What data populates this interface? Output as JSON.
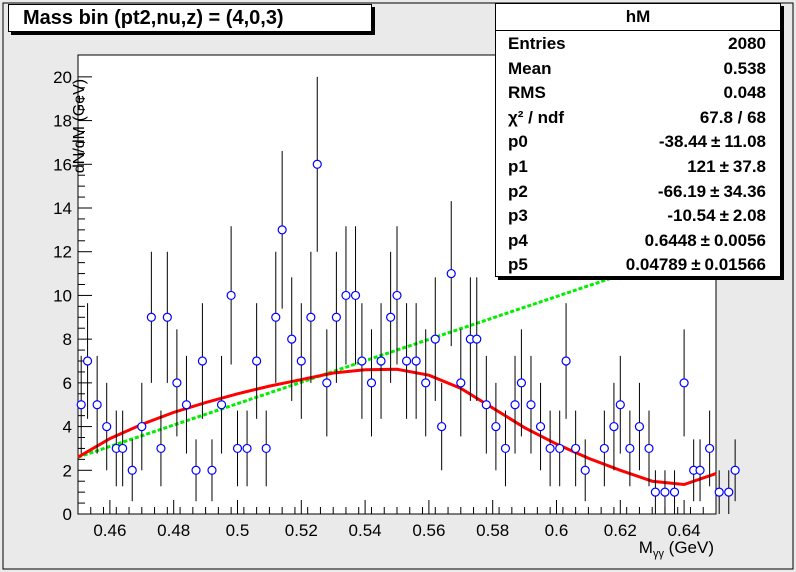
{
  "title": "Mass bin (pt2,nu,z) = (4,0,3)",
  "stats": {
    "name": "hM",
    "rows": [
      {
        "key": "Entries",
        "value": "2080"
      },
      {
        "key": "Mean",
        "value": "0.538"
      },
      {
        "key": "RMS",
        "value": "0.048"
      },
      {
        "key": "χ² / ndf",
        "value": "67.8 / 68"
      },
      {
        "key": "p0",
        "value": "-38.44",
        "err": "11.08"
      },
      {
        "key": "p1",
        "value": "121",
        "err": "37.8"
      },
      {
        "key": "p2",
        "value": "-66.19",
        "err": "34.36"
      },
      {
        "key": "p3",
        "value": "-10.54",
        "err": "2.08"
      },
      {
        "key": "p4",
        "value": "0.6448",
        "err": "0.0056"
      },
      {
        "key": "p5",
        "value": "0.04789",
        "err": "0.01566"
      }
    ],
    "pm_symbol": "±"
  },
  "chart_data": {
    "type": "scatter",
    "xlabel": "Mγγ (GeV)",
    "ylabel": "dN/dM (GeV)",
    "xlim": [
      0.45,
      0.65
    ],
    "ylim": [
      0,
      21
    ],
    "xticks": [
      "0.46",
      "0.48",
      "0.5",
      "0.52",
      "0.54",
      "0.56",
      "0.58",
      "0.6",
      "0.62",
      "0.64"
    ],
    "xtick_values": [
      0.46,
      0.48,
      0.5,
      0.52,
      0.54,
      0.56,
      0.58,
      0.6,
      0.62,
      0.64
    ],
    "yticks": [
      "0",
      "2",
      "4",
      "6",
      "8",
      "10",
      "12",
      "14",
      "16",
      "18",
      "20"
    ],
    "ytick_values": [
      0,
      2,
      4,
      6,
      8,
      10,
      12,
      14,
      16,
      18,
      20
    ],
    "points": [
      {
        "x": 0.451,
        "y": 5
      },
      {
        "x": 0.453,
        "y": 7
      },
      {
        "x": 0.456,
        "y": 5
      },
      {
        "x": 0.459,
        "y": 4
      },
      {
        "x": 0.462,
        "y": 3
      },
      {
        "x": 0.464,
        "y": 3
      },
      {
        "x": 0.467,
        "y": 2
      },
      {
        "x": 0.47,
        "y": 4
      },
      {
        "x": 0.473,
        "y": 9
      },
      {
        "x": 0.476,
        "y": 3
      },
      {
        "x": 0.478,
        "y": 9
      },
      {
        "x": 0.481,
        "y": 6
      },
      {
        "x": 0.484,
        "y": 5
      },
      {
        "x": 0.487,
        "y": 2
      },
      {
        "x": 0.489,
        "y": 7
      },
      {
        "x": 0.492,
        "y": 2
      },
      {
        "x": 0.495,
        "y": 5
      },
      {
        "x": 0.498,
        "y": 10
      },
      {
        "x": 0.5,
        "y": 3
      },
      {
        "x": 0.503,
        "y": 3
      },
      {
        "x": 0.506,
        "y": 7
      },
      {
        "x": 0.509,
        "y": 3
      },
      {
        "x": 0.512,
        "y": 9
      },
      {
        "x": 0.514,
        "y": 13
      },
      {
        "x": 0.517,
        "y": 8
      },
      {
        "x": 0.52,
        "y": 7
      },
      {
        "x": 0.523,
        "y": 9
      },
      {
        "x": 0.525,
        "y": 16
      },
      {
        "x": 0.528,
        "y": 6
      },
      {
        "x": 0.531,
        "y": 9
      },
      {
        "x": 0.534,
        "y": 10
      },
      {
        "x": 0.537,
        "y": 10
      },
      {
        "x": 0.539,
        "y": 7
      },
      {
        "x": 0.542,
        "y": 6
      },
      {
        "x": 0.545,
        "y": 7
      },
      {
        "x": 0.548,
        "y": 9
      },
      {
        "x": 0.55,
        "y": 10
      },
      {
        "x": 0.553,
        "y": 7
      },
      {
        "x": 0.556,
        "y": 7
      },
      {
        "x": 0.559,
        "y": 6
      },
      {
        "x": 0.562,
        "y": 8
      },
      {
        "x": 0.564,
        "y": 4
      },
      {
        "x": 0.567,
        "y": 11
      },
      {
        "x": 0.57,
        "y": 6
      },
      {
        "x": 0.573,
        "y": 8
      },
      {
        "x": 0.575,
        "y": 8
      },
      {
        "x": 0.578,
        "y": 5
      },
      {
        "x": 0.581,
        "y": 4
      },
      {
        "x": 0.584,
        "y": 3
      },
      {
        "x": 0.587,
        "y": 5
      },
      {
        "x": 0.589,
        "y": 6
      },
      {
        "x": 0.592,
        "y": 5
      },
      {
        "x": 0.595,
        "y": 4
      },
      {
        "x": 0.598,
        "y": 3
      },
      {
        "x": 0.601,
        "y": 3
      },
      {
        "x": 0.603,
        "y": 7
      },
      {
        "x": 0.606,
        "y": 3
      },
      {
        "x": 0.609,
        "y": 2
      },
      {
        "x": 0.615,
        "y": 3
      },
      {
        "x": 0.618,
        "y": 4
      },
      {
        "x": 0.62,
        "y": 5
      },
      {
        "x": 0.623,
        "y": 3
      },
      {
        "x": 0.626,
        "y": 4
      },
      {
        "x": 0.629,
        "y": 3
      },
      {
        "x": 0.631,
        "y": 1
      },
      {
        "x": 0.634,
        "y": 1
      },
      {
        "x": 0.637,
        "y": 1
      },
      {
        "x": 0.64,
        "y": 6
      },
      {
        "x": 0.643,
        "y": 2
      },
      {
        "x": 0.645,
        "y": 2
      },
      {
        "x": 0.648,
        "y": 3
      },
      {
        "x": 0.651,
        "y": 1
      },
      {
        "x": 0.654,
        "y": 1
      },
      {
        "x": 0.656,
        "y": 2
      }
    ],
    "fit_curve": {
      "color": "#ff0000",
      "points": [
        {
          "x": 0.45,
          "y": 2.6
        },
        {
          "x": 0.46,
          "y": 3.45
        },
        {
          "x": 0.47,
          "y": 4.1
        },
        {
          "x": 0.48,
          "y": 4.65
        },
        {
          "x": 0.49,
          "y": 5.1
        },
        {
          "x": 0.5,
          "y": 5.5
        },
        {
          "x": 0.51,
          "y": 5.85
        },
        {
          "x": 0.52,
          "y": 6.15
        },
        {
          "x": 0.53,
          "y": 6.45
        },
        {
          "x": 0.54,
          "y": 6.6
        },
        {
          "x": 0.55,
          "y": 6.62
        },
        {
          "x": 0.56,
          "y": 6.35
        },
        {
          "x": 0.57,
          "y": 5.75
        },
        {
          "x": 0.58,
          "y": 4.85
        },
        {
          "x": 0.59,
          "y": 3.95
        },
        {
          "x": 0.6,
          "y": 3.2
        },
        {
          "x": 0.61,
          "y": 2.55
        },
        {
          "x": 0.62,
          "y": 2.0
        },
        {
          "x": 0.63,
          "y": 1.5
        },
        {
          "x": 0.64,
          "y": 1.35
        },
        {
          "x": 0.65,
          "y": 1.85
        }
      ]
    },
    "background_line": {
      "color": "#00ee00",
      "points": [
        {
          "x": 0.45,
          "y": 2.6
        },
        {
          "x": 0.65,
          "y": 12.4
        }
      ]
    },
    "marker_color": "#0000ff",
    "grid": false
  }
}
